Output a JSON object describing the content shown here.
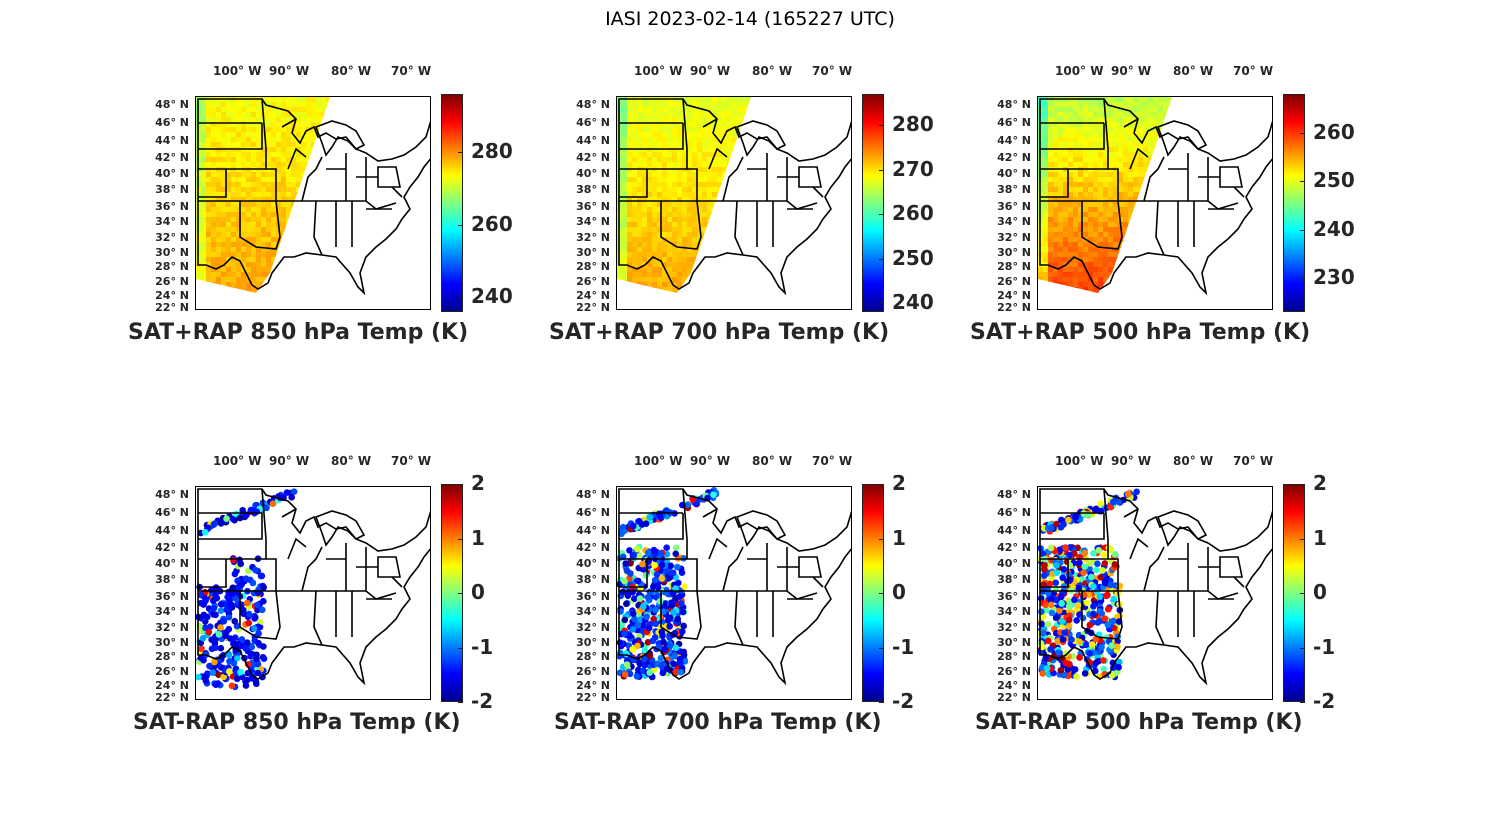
{
  "figure_title": "IASI 2023-02-14 (165227 UTC)",
  "lon_ticks": [
    "100° W",
    "90° W",
    "80° W",
    "70° W"
  ],
  "lat_ticks": [
    "48° N",
    "46° N",
    "44° N",
    "42° N",
    "40° N",
    "38° N",
    "36° N",
    "34° N",
    "32° N",
    "30° N",
    "28° N",
    "26° N",
    "24° N",
    "22° N"
  ],
  "panels": [
    {
      "title": "SAT+RAP 850 hPa Temp (K)",
      "kind": "temp",
      "cbar_ticks": [
        "280",
        "260",
        "240"
      ],
      "cbar_range": [
        236,
        296
      ],
      "cbar_values": [
        280,
        260,
        240
      ]
    },
    {
      "title": "SAT+RAP 700 hPa Temp (K)",
      "kind": "temp",
      "cbar_ticks": [
        "280",
        "270",
        "260",
        "250",
        "240"
      ],
      "cbar_range": [
        238,
        287
      ],
      "cbar_values": [
        280,
        270,
        260,
        250,
        240
      ]
    },
    {
      "title": "SAT+RAP 500 hPa Temp (K)",
      "kind": "temp",
      "cbar_ticks": [
        "260",
        "250",
        "240",
        "230"
      ],
      "cbar_range": [
        223,
        268
      ],
      "cbar_values": [
        260,
        250,
        240,
        230
      ]
    },
    {
      "title": "SAT-RAP 850 hPa Temp (K)",
      "kind": "diff",
      "cbar_ticks": [
        "2",
        "1",
        "0",
        "-1",
        "-2"
      ],
      "cbar_range": [
        -2,
        2
      ],
      "cbar_values": [
        2,
        1,
        0,
        -1,
        -2
      ]
    },
    {
      "title": "SAT-RAP 700 hPa Temp (K)",
      "kind": "diff",
      "cbar_ticks": [
        "2",
        "1",
        "0",
        "-1",
        "-2"
      ],
      "cbar_range": [
        -2,
        2
      ],
      "cbar_values": [
        2,
        1,
        0,
        -1,
        -2
      ]
    },
    {
      "title": "SAT-RAP 500 hPa Temp (K)",
      "kind": "diff",
      "cbar_ticks": [
        "2",
        "1",
        "0",
        "-1",
        "-2"
      ],
      "cbar_range": [
        -2,
        2
      ],
      "cbar_values": [
        2,
        1,
        0,
        -1,
        -2
      ]
    }
  ],
  "colormap": "jet"
}
